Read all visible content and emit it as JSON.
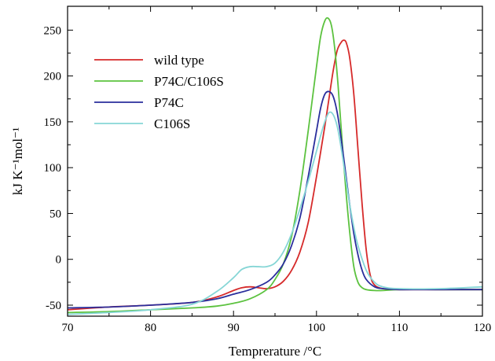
{
  "chart_data": {
    "type": "line",
    "title": "",
    "xlabel": "Temprerature /°C",
    "ylabel": "kJ K⁻¹mol⁻¹",
    "xlim": [
      70,
      120
    ],
    "ylim": [
      -62,
      276
    ],
    "xticks": [
      70,
      80,
      90,
      100,
      110,
      120
    ],
    "yticks": [
      -50,
      0,
      50,
      100,
      150,
      200,
      250
    ],
    "grid": false,
    "legend_position": "top-left",
    "series": [
      {
        "name": "wild type",
        "color": "#d62a2a",
        "x": [
          70,
          75,
          80,
          85,
          88,
          90,
          91,
          92,
          93,
          94,
          95,
          96,
          97,
          98,
          99,
          100,
          101,
          101.5,
          102,
          102.5,
          103,
          103.3,
          103.6,
          104,
          104.5,
          105,
          105.5,
          106,
          106.5,
          107,
          108,
          110,
          115,
          120
        ],
        "y": [
          -55,
          -52,
          -50,
          -47,
          -41,
          -34,
          -31,
          -30,
          -31,
          -32,
          -30,
          -24,
          -12,
          8,
          40,
          90,
          145,
          175,
          205,
          228,
          237,
          239,
          236,
          220,
          180,
          120,
          60,
          10,
          -18,
          -28,
          -32,
          -33,
          -33,
          -33
        ]
      },
      {
        "name": "P74C/C106S",
        "color": "#5cc23f",
        "x": [
          70,
          75,
          80,
          85,
          88,
          90,
          92,
          94,
          95,
          96,
          97,
          98,
          99,
          100,
          100.5,
          101,
          101.4,
          101.8,
          102.2,
          102.6,
          103,
          103.5,
          104,
          104.5,
          105,
          105.5,
          106,
          107,
          108,
          110,
          115,
          120
        ],
        "y": [
          -58,
          -57,
          -55,
          -53,
          -51,
          -48,
          -43,
          -33,
          -22,
          -5,
          25,
          75,
          140,
          210,
          243,
          260,
          263,
          255,
          230,
          190,
          140,
          80,
          30,
          -8,
          -25,
          -31,
          -33,
          -34,
          -34,
          -33,
          -33,
          -33
        ]
      },
      {
        "name": "P74C",
        "color": "#2a2e9c",
        "x": [
          70,
          75,
          80,
          85,
          88,
          90,
          92,
          94,
          95,
          96,
          97,
          98,
          99,
          100,
          100.5,
          101,
          101.5,
          102,
          102.5,
          103,
          103.5,
          104,
          104.5,
          105,
          105.5,
          106,
          107,
          108,
          110,
          115,
          120
        ],
        "y": [
          -53,
          -52,
          -50,
          -47,
          -43,
          -38,
          -33,
          -25,
          -17,
          -5,
          15,
          45,
          90,
          140,
          165,
          180,
          183,
          178,
          160,
          130,
          95,
          60,
          28,
          5,
          -12,
          -22,
          -30,
          -32,
          -33,
          -33,
          -33
        ]
      },
      {
        "name": "C106S",
        "color": "#86d6d6",
        "x": [
          70,
          75,
          80,
          85,
          88,
          90,
          91,
          92,
          93,
          94,
          95,
          96,
          97,
          98,
          99,
          100,
          100.5,
          101,
          101.5,
          102,
          102.5,
          103,
          103.5,
          104,
          104.5,
          105,
          106,
          107,
          108,
          110,
          115,
          120
        ],
        "y": [
          -60,
          -58,
          -55,
          -49,
          -35,
          -20,
          -11,
          -8,
          -8,
          -8,
          -4,
          8,
          28,
          55,
          85,
          118,
          135,
          150,
          160,
          158,
          145,
          120,
          90,
          60,
          35,
          15,
          -12,
          -25,
          -30,
          -32,
          -32,
          -30
        ]
      }
    ]
  }
}
